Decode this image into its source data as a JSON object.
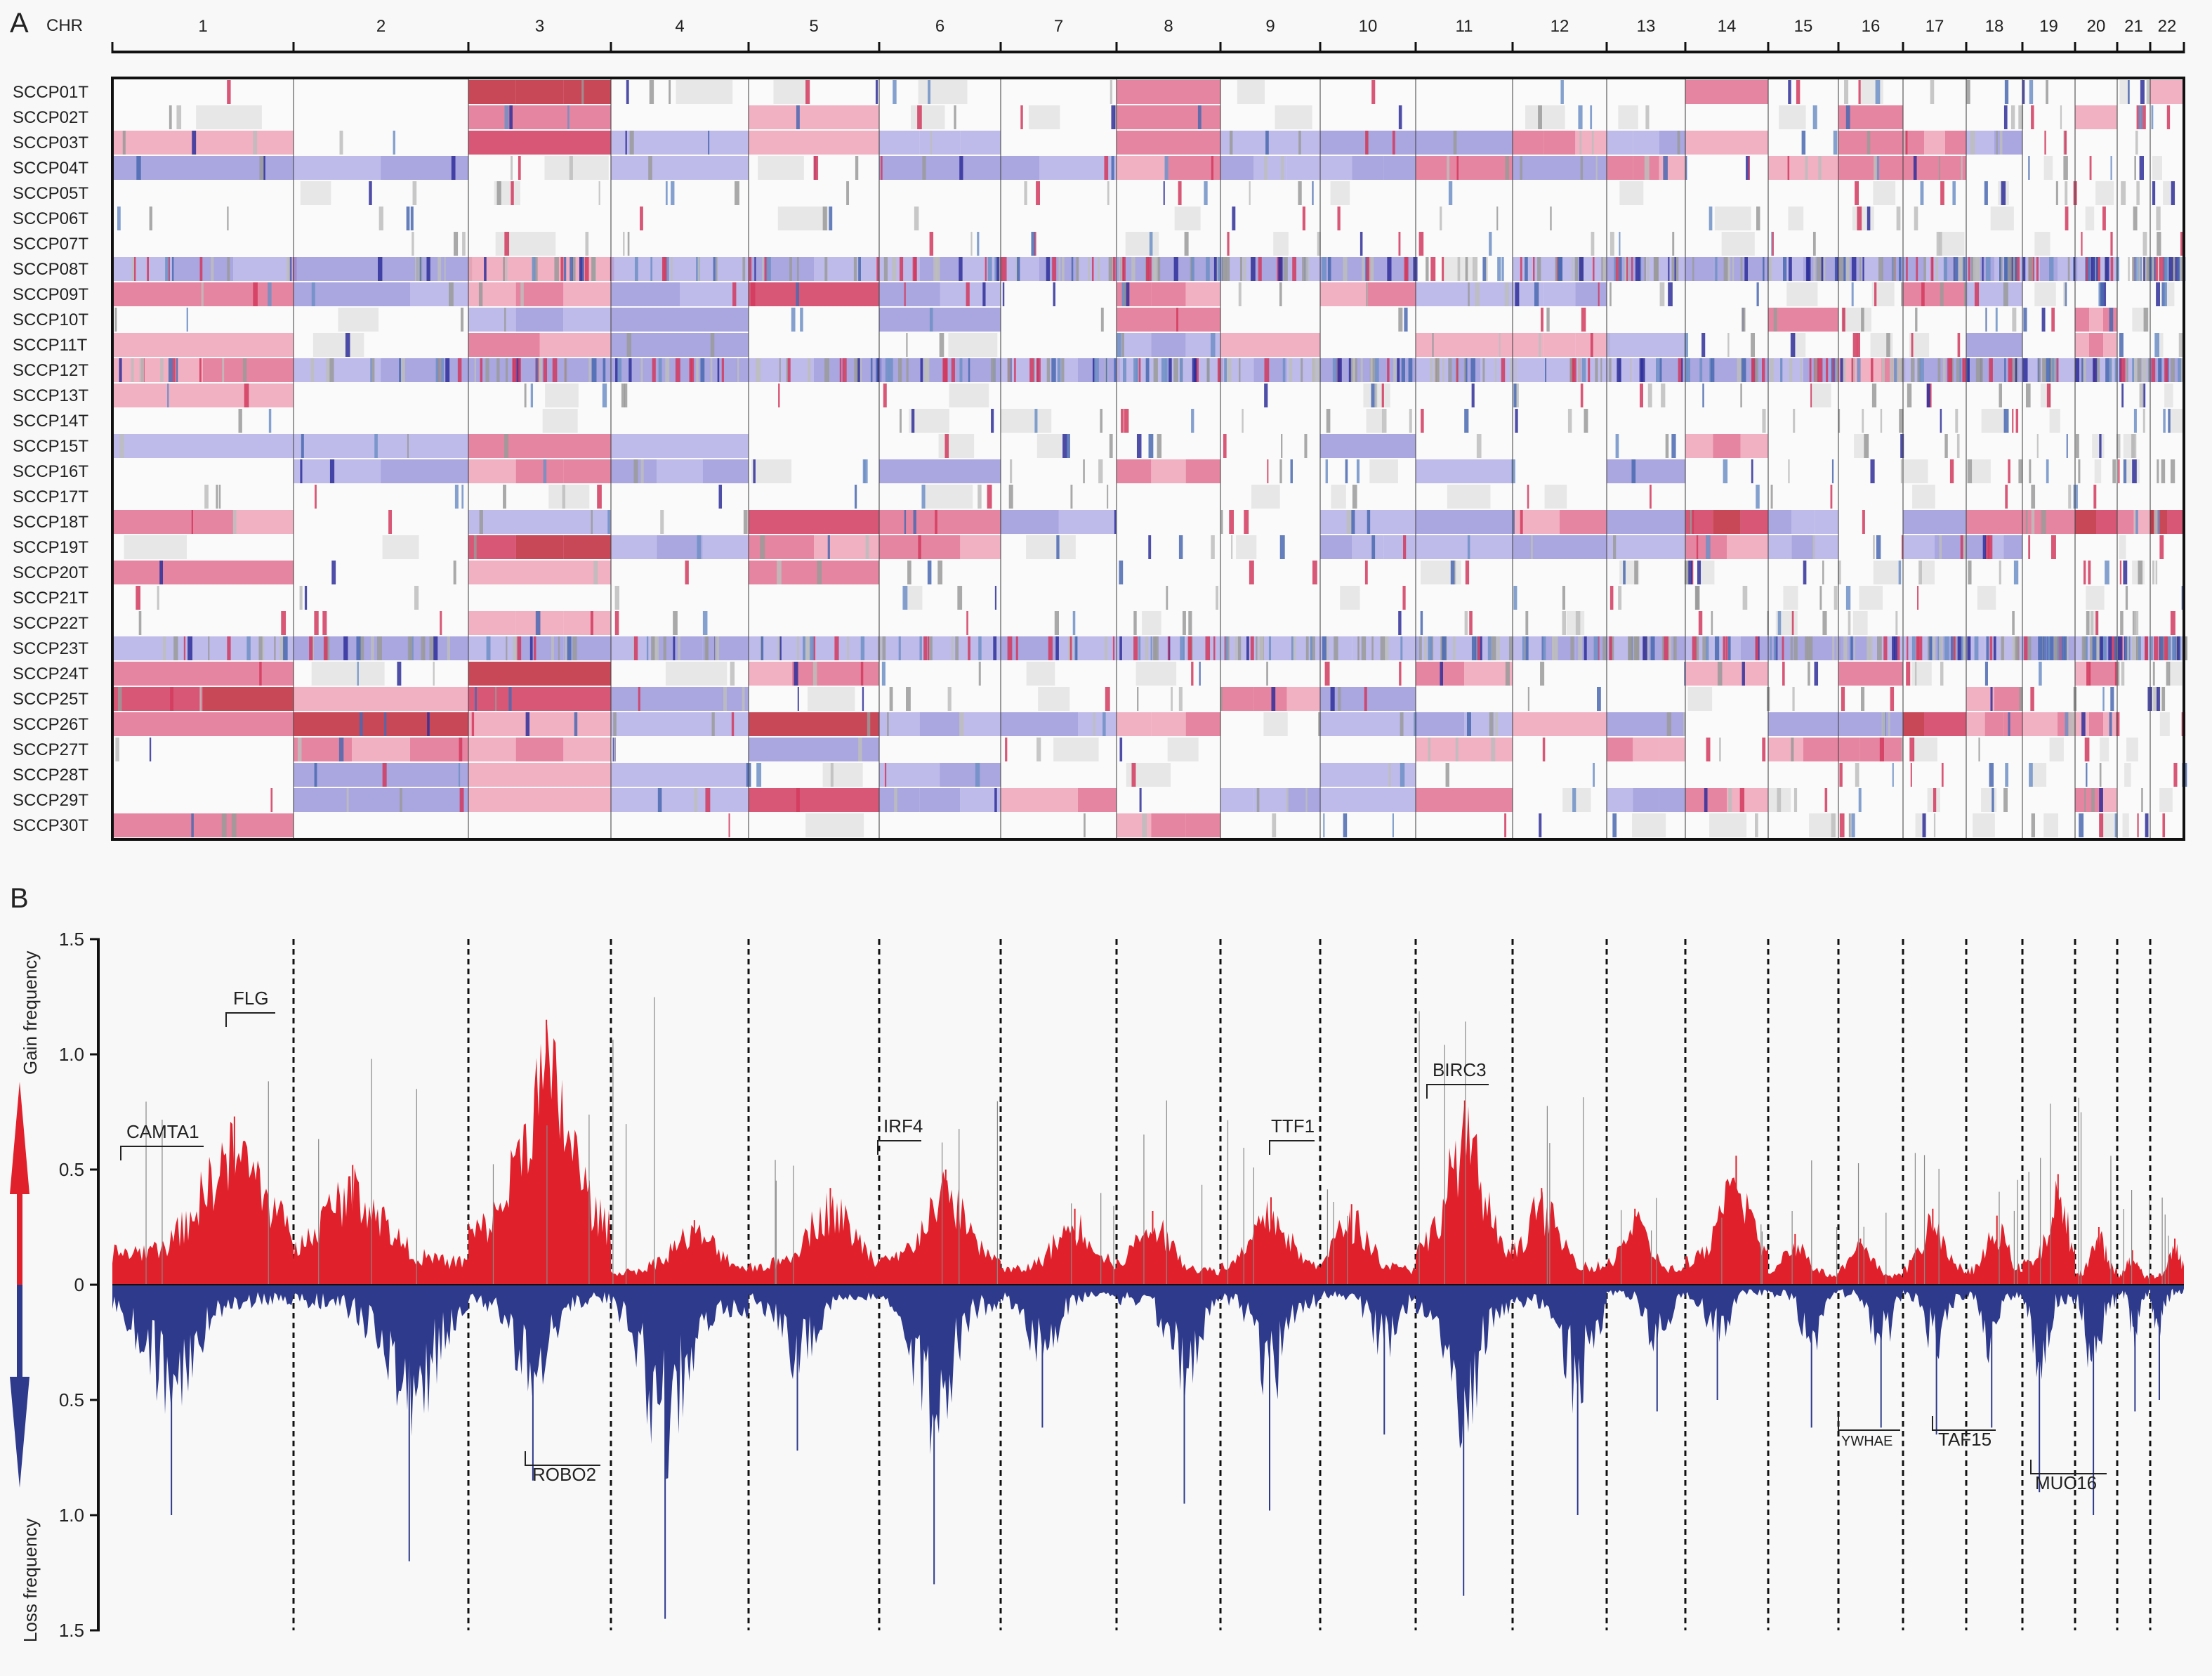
{
  "panel_a": {
    "panel_label": "A",
    "chr_header": "CHR",
    "chromosomes": [
      "1",
      "2",
      "3",
      "4",
      "5",
      "6",
      "7",
      "8",
      "9",
      "10",
      "11",
      "12",
      "13",
      "14",
      "15",
      "16",
      "17",
      "18",
      "19",
      "20",
      "21",
      "22"
    ],
    "samples": [
      "SCCP01T",
      "SCCP02T",
      "SCCP03T",
      "SCCP04T",
      "SCCP05T",
      "SCCP06T",
      "SCCP07T",
      "SCCP08T",
      "SCCP09T",
      "SCCP10T",
      "SCCP11T",
      "SCCP12T",
      "SCCP13T",
      "SCCP14T",
      "SCCP15T",
      "SCCP16T",
      "SCCP17T",
      "SCCP18T",
      "SCCP19T",
      "SCCP20T",
      "SCCP21T",
      "SCCP22T",
      "SCCP23T",
      "SCCP24T",
      "SCCP25T",
      "SCCP26T",
      "SCCP27T",
      "SCCP28T",
      "SCCP29T",
      "SCCP30T"
    ],
    "colors": {
      "gain": "#d23a5e",
      "loss": "#5a5ab8",
      "neutral": "#cfcfcf"
    }
  },
  "panel_b": {
    "panel_label": "B",
    "y_label_gain": "Gain frequency",
    "y_label_loss": "Loss frequency",
    "y_ticks": [
      "1.5",
      "1.0",
      "0.5",
      "0",
      "0.5",
      "1.0",
      "1.5"
    ],
    "genes": [
      {
        "name": "CAMTA1",
        "side": "gain"
      },
      {
        "name": "FLG",
        "side": "gain"
      },
      {
        "name": "ROBO2",
        "side": "loss"
      },
      {
        "name": "IRF4",
        "side": "gain"
      },
      {
        "name": "TTF1",
        "side": "gain"
      },
      {
        "name": "BIRC3",
        "side": "gain"
      },
      {
        "name": "YWHAE",
        "side": "loss"
      },
      {
        "name": "TAF15",
        "side": "loss"
      },
      {
        "name": "MUC16",
        "side": "loss"
      }
    ],
    "colors": {
      "gain": "#e0212b",
      "loss": "#2e3a8c",
      "arrow_gain": "#e0212b",
      "arrow_loss": "#2e3a8c",
      "arrow_mid": "#1f7a6e"
    }
  },
  "chart_data": [
    {
      "type": "heatmap",
      "title": "",
      "xlabel": "CHR",
      "ylabel": "",
      "categories": [
        "1",
        "2",
        "3",
        "4",
        "5",
        "6",
        "7",
        "8",
        "9",
        "10",
        "11",
        "12",
        "13",
        "14",
        "15",
        "16",
        "17",
        "18",
        "19",
        "20",
        "21",
        "22"
      ],
      "rows": [
        "SCCP01T",
        "SCCP02T",
        "SCCP03T",
        "SCCP04T",
        "SCCP05T",
        "SCCP06T",
        "SCCP07T",
        "SCCP08T",
        "SCCP09T",
        "SCCP10T",
        "SCCP11T",
        "SCCP12T",
        "SCCP13T",
        "SCCP14T",
        "SCCP15T",
        "SCCP16T",
        "SCCP17T",
        "SCCP18T",
        "SCCP19T",
        "SCCP20T",
        "SCCP21T",
        "SCCP22T",
        "SCCP23T",
        "SCCP24T",
        "SCCP25T",
        "SCCP26T",
        "SCCP27T",
        "SCCP28T",
        "SCCP29T",
        "SCCP30T"
      ],
      "values": [
        [
          0,
          0,
          2,
          0,
          0,
          0,
          0,
          1,
          0,
          0,
          0,
          0,
          0,
          1,
          0,
          0,
          0,
          0,
          0,
          0,
          0,
          1
        ],
        [
          0,
          0,
          1,
          0,
          1,
          0,
          0,
          1,
          0,
          0,
          0,
          0,
          0,
          0,
          0,
          1,
          0,
          0,
          0,
          1,
          0,
          0
        ],
        [
          1,
          0,
          2,
          -1,
          1,
          -1,
          0,
          1,
          -1,
          -1,
          -1,
          1,
          -1,
          1,
          0,
          1,
          1,
          -1,
          0,
          0,
          0,
          0
        ],
        [
          -1,
          -1,
          0,
          -1,
          0,
          -1,
          -1,
          1,
          -1,
          -1,
          1,
          -1,
          1,
          0,
          1,
          1,
          1,
          0,
          0,
          0,
          0,
          0
        ],
        [
          0,
          0,
          0,
          0,
          0,
          0,
          0,
          0,
          0,
          0,
          0,
          0,
          0,
          0,
          0,
          0,
          0,
          0,
          0,
          0,
          0,
          0
        ],
        [
          0,
          0,
          0,
          0,
          0,
          0,
          0,
          0,
          0,
          0,
          0,
          0,
          0,
          0,
          0,
          0,
          0,
          0,
          0,
          0,
          0,
          0
        ],
        [
          0,
          0,
          0,
          0,
          0,
          0,
          0,
          0,
          0,
          0,
          0,
          0,
          0,
          0,
          0,
          0,
          0,
          0,
          0,
          0,
          0,
          0
        ],
        [
          -1,
          -1,
          1,
          -1,
          -1,
          -1,
          -1,
          -1,
          -1,
          -1,
          0,
          -1,
          -1,
          -1,
          -1,
          -1,
          -1,
          -1,
          -1,
          -1,
          0,
          0
        ],
        [
          1,
          -1,
          1,
          -1,
          2,
          -1,
          0,
          1,
          0,
          1,
          -1,
          -1,
          0,
          0,
          0,
          0,
          1,
          -1,
          0,
          0,
          0,
          0
        ],
        [
          0,
          0,
          -1,
          -1,
          0,
          -1,
          0,
          1,
          0,
          0,
          0,
          0,
          0,
          0,
          1,
          0,
          0,
          0,
          0,
          1,
          0,
          0
        ],
        [
          1,
          0,
          1,
          -1,
          0,
          0,
          0,
          -1,
          1,
          0,
          1,
          1,
          -1,
          0,
          0,
          0,
          0,
          -1,
          0,
          1,
          0,
          0
        ],
        [
          1,
          -1,
          -1,
          -1,
          -1,
          -1,
          -1,
          -1,
          -1,
          -1,
          -1,
          -1,
          -1,
          -1,
          -1,
          1,
          -1,
          -1,
          -1,
          -1,
          -1,
          -1
        ],
        [
          1,
          0,
          0,
          0,
          0,
          0,
          0,
          0,
          0,
          0,
          0,
          0,
          0,
          0,
          0,
          0,
          0,
          0,
          0,
          0,
          0,
          0
        ],
        [
          0,
          0,
          0,
          0,
          0,
          0,
          0,
          0,
          0,
          0,
          0,
          0,
          0,
          0,
          0,
          0,
          0,
          0,
          0,
          0,
          0,
          0
        ],
        [
          -1,
          -1,
          1,
          -1,
          0,
          0,
          0,
          0,
          0,
          -1,
          0,
          0,
          0,
          1,
          0,
          0,
          0,
          0,
          0,
          0,
          0,
          0
        ],
        [
          0,
          -1,
          1,
          -1,
          0,
          -1,
          0,
          1,
          0,
          0,
          -1,
          0,
          -1,
          0,
          0,
          0,
          0,
          0,
          0,
          0,
          0,
          0
        ],
        [
          0,
          0,
          0,
          0,
          0,
          0,
          0,
          0,
          0,
          0,
          0,
          0,
          0,
          0,
          0,
          0,
          0,
          0,
          0,
          0,
          0,
          0
        ],
        [
          1,
          0,
          -1,
          0,
          2,
          1,
          -1,
          0,
          0,
          -1,
          -1,
          1,
          -1,
          2,
          -1,
          0,
          -1,
          1,
          1,
          2,
          1,
          2
        ],
        [
          0,
          0,
          2,
          -1,
          1,
          1,
          0,
          0,
          0,
          -1,
          -1,
          -1,
          -1,
          1,
          -1,
          0,
          -1,
          -1,
          0,
          0,
          0,
          0
        ],
        [
          1,
          0,
          1,
          0,
          1,
          0,
          0,
          0,
          0,
          0,
          0,
          0,
          0,
          0,
          0,
          0,
          0,
          0,
          0,
          0,
          0,
          0
        ],
        [
          0,
          0,
          0,
          0,
          0,
          0,
          0,
          0,
          0,
          0,
          0,
          0,
          0,
          0,
          0,
          0,
          0,
          0,
          0,
          0,
          0,
          0
        ],
        [
          0,
          0,
          1,
          0,
          0,
          0,
          0,
          0,
          0,
          0,
          0,
          0,
          0,
          0,
          0,
          0,
          0,
          0,
          0,
          0,
          0,
          0
        ],
        [
          -1,
          -1,
          -1,
          -1,
          -1,
          -1,
          -1,
          -1,
          -1,
          -1,
          -1,
          -1,
          -1,
          -1,
          -1,
          -1,
          -1,
          -1,
          -1,
          -1,
          -1,
          -1
        ],
        [
          1,
          0,
          2,
          0,
          1,
          0,
          0,
          0,
          0,
          0,
          1,
          0,
          0,
          1,
          0,
          1,
          0,
          0,
          0,
          1,
          0,
          0
        ],
        [
          2,
          1,
          2,
          -1,
          0,
          0,
          0,
          0,
          1,
          -1,
          0,
          0,
          0,
          0,
          0,
          0,
          0,
          1,
          0,
          0,
          0,
          0
        ],
        [
          1,
          2,
          1,
          -1,
          2,
          -1,
          -1,
          1,
          0,
          -1,
          -1,
          1,
          -1,
          0,
          -1,
          -1,
          2,
          1,
          1,
          1,
          0,
          0
        ],
        [
          0,
          1,
          1,
          0,
          -1,
          0,
          0,
          0,
          0,
          0,
          1,
          0,
          1,
          0,
          1,
          1,
          0,
          0,
          0,
          0,
          0,
          0
        ],
        [
          0,
          -1,
          1,
          -1,
          0,
          -1,
          0,
          0,
          0,
          -1,
          0,
          0,
          0,
          0,
          0,
          0,
          0,
          0,
          0,
          0,
          0,
          0
        ],
        [
          0,
          -1,
          1,
          -1,
          2,
          -1,
          1,
          0,
          -1,
          -1,
          1,
          0,
          -1,
          1,
          0,
          0,
          0,
          0,
          0,
          1,
          0,
          0
        ],
        [
          1,
          0,
          0,
          0,
          0,
          0,
          0,
          1,
          0,
          0,
          0,
          0,
          0,
          0,
          0,
          0,
          0,
          0,
          0,
          0,
          0,
          0
        ]
      ]
    },
    {
      "type": "area",
      "title": "",
      "xlabel": "",
      "ylabel": "Gain frequency / Loss frequency",
      "ylim": [
        -1.5,
        1.5
      ],
      "categories": [
        "1",
        "2",
        "3",
        "4",
        "5",
        "6",
        "7",
        "8",
        "9",
        "10",
        "11",
        "12",
        "13",
        "14",
        "15",
        "16",
        "17",
        "18",
        "19",
        "20",
        "21",
        "22"
      ],
      "series": [
        {
          "name": "Gain",
          "values": [
            0.73,
            0.52,
            1.15,
            0.28,
            0.42,
            0.5,
            0.33,
            0.32,
            0.38,
            0.35,
            0.8,
            0.42,
            0.33,
            0.56,
            0.22,
            0.2,
            0.33,
            0.3,
            0.48,
            0.25,
            0.15,
            0.2
          ]
        },
        {
          "name": "Loss",
          "values": [
            -1.0,
            -1.2,
            -0.85,
            -1.45,
            -0.72,
            -1.3,
            -0.62,
            -0.95,
            -0.98,
            -0.65,
            -1.35,
            -1.0,
            -0.55,
            -0.5,
            -0.62,
            -0.62,
            -0.65,
            -0.62,
            -0.9,
            -1.0,
            -0.55,
            -0.5
          ]
        }
      ],
      "annotations": [
        "CAMTA1",
        "FLG",
        "ROBO2",
        "IRF4",
        "TTF1",
        "BIRC3",
        "YWHAE",
        "TAF15",
        "MUC16"
      ]
    }
  ]
}
